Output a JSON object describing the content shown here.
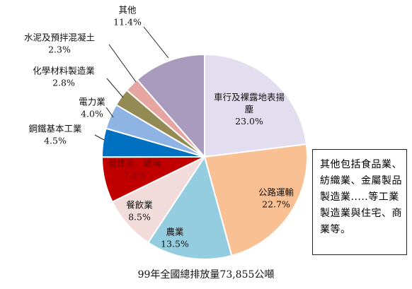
{
  "chart_data": {
    "type": "pie",
    "title": "",
    "caption": "99年全國總排放量73,855公噸",
    "slices": [
      {
        "label": "車行及裸露地表揚塵",
        "value_label": "23.0%",
        "value": 23.0,
        "color": "#e2def0"
      },
      {
        "label": "公路運輸",
        "value_label": "22.7%",
        "value": 22.7,
        "color": "#f9c093"
      },
      {
        "label": "農業",
        "value_label": "13.5%",
        "value": 13.5,
        "color": "#94cde0"
      },
      {
        "label": "餐飲業",
        "value_label": "8.5%",
        "value": 8.5,
        "color": "#f2dcdb"
      },
      {
        "label": "營建業、礦場",
        "value_label": "7.2%",
        "value": 7.2,
        "color": "#c00000"
      },
      {
        "label": "鋼鐵基本工業",
        "value_label": "4.5%",
        "value": 4.5,
        "color": "#0070c0"
      },
      {
        "label": "電力業",
        "value_label": "4.0%",
        "value": 4.0,
        "color": "#8eb4e3"
      },
      {
        "label": "化學材料製造業",
        "value_label": "2.8%",
        "value": 2.8,
        "color": "#948a54"
      },
      {
        "label": "水泥及預拌混凝土",
        "value_label": "2.3%",
        "value": 2.3,
        "color": "#e6a5a1"
      },
      {
        "label": "其他",
        "value_label": "11.4%",
        "value": 11.4,
        "color": "#a99bbd"
      }
    ],
    "legend": "none"
  },
  "note": {
    "text": "其他包括食品業、紡織業、金屬製品製造業.....等工業製造業與住宅、商業等。"
  }
}
